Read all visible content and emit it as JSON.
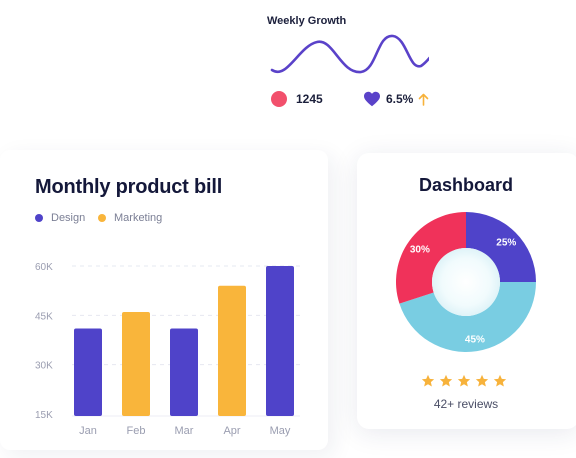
{
  "growth": {
    "title": "Weekly Growth",
    "count": "1245",
    "percent": "6.5%",
    "colors": {
      "wave": "#5a42c9",
      "dot": "#f2506c",
      "heart": "#5a42c9",
      "arrow": "#f7b23b"
    }
  },
  "bill": {
    "title": "Monthly product bill",
    "legend": [
      {
        "label": "Design",
        "color": "#4f43c9"
      },
      {
        "label": "Marketing",
        "color": "#f9b53b"
      }
    ]
  },
  "chart_data": {
    "type": "bar",
    "categories": [
      "Jan",
      "Feb",
      "Mar",
      "Apr",
      "May"
    ],
    "series": [
      {
        "name": "Design",
        "color": "#4f43c9",
        "values": [
          41,
          null,
          41,
          null,
          60
        ]
      },
      {
        "name": "Marketing",
        "color": "#f9b53b",
        "values": [
          null,
          46,
          null,
          54,
          null
        ]
      }
    ],
    "ylim": [
      15,
      60
    ],
    "yticks": [
      "15K",
      "30K",
      "45K",
      "60K"
    ],
    "grid": true
  },
  "dashboard": {
    "title": "Dashboard",
    "donut": [
      {
        "label": "25%",
        "value": 25,
        "color": "#4f43c9"
      },
      {
        "label": "45%",
        "value": 45,
        "color": "#79cde2"
      },
      {
        "label": "30%",
        "value": 30,
        "color": "#f0325a"
      }
    ],
    "rating": 5,
    "star_color": "#f7b23b",
    "reviews": "42+ reviews"
  }
}
